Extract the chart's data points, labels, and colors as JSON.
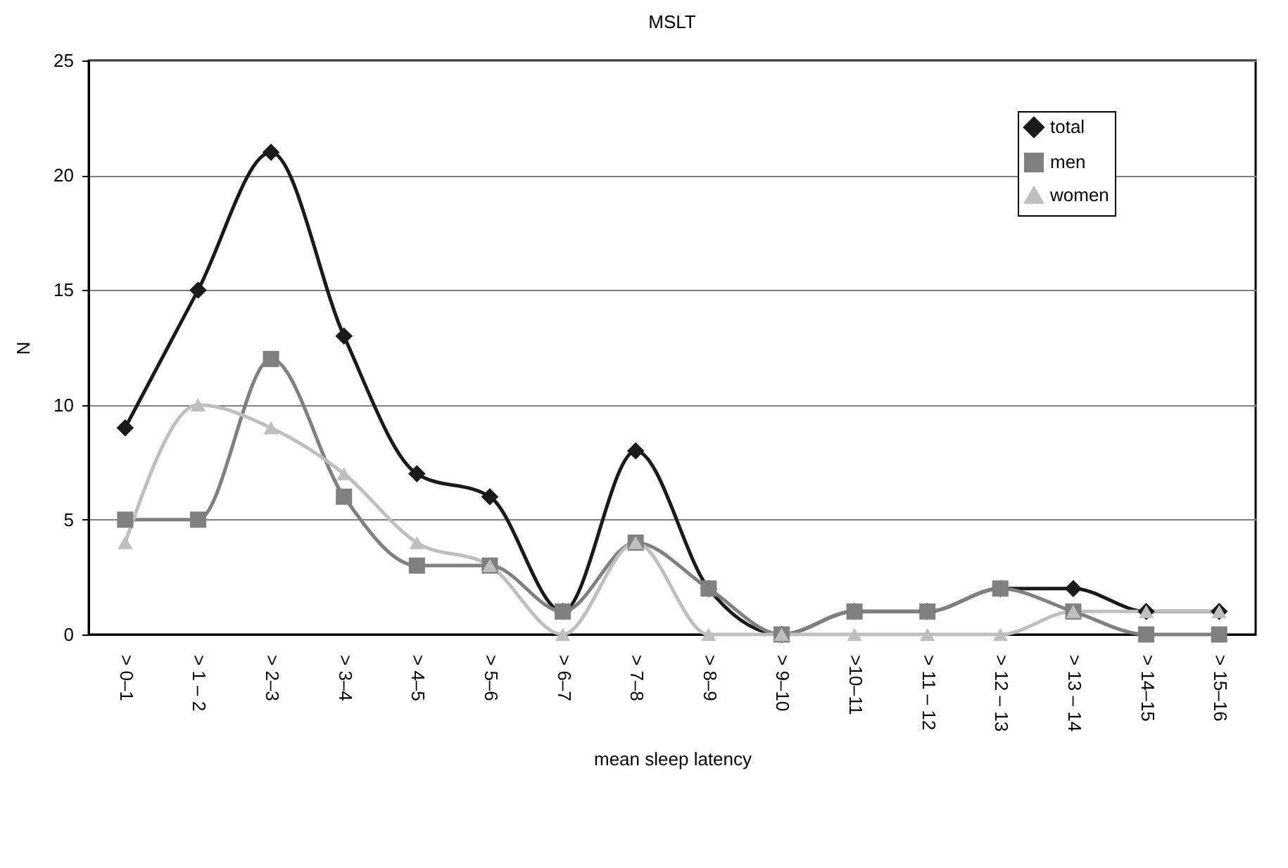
{
  "chart_data": {
    "type": "line",
    "title": "MSLT",
    "xlabel": "mean sleep latency",
    "ylabel": "N",
    "categories": [
      "> 0–1",
      "> 1 – 2",
      "> 2–3",
      "> 3–4",
      "> 4–5",
      "> 5–6",
      "> 6–7",
      "> 7–8",
      "> 8–9",
      "> 9–10",
      ">10–11",
      "> 11 – 12",
      "> 12 – 13",
      "> 13 – 14",
      "> 14–15",
      "> 15–16"
    ],
    "series": [
      {
        "name": "total",
        "color": "#1a1a1a",
        "marker": "diamond",
        "values": [
          9,
          15,
          21,
          13,
          7,
          6,
          1,
          8,
          2,
          0,
          1,
          1,
          2,
          2,
          1,
          1
        ]
      },
      {
        "name": "men",
        "color": "#808080",
        "marker": "square",
        "values": [
          5,
          5,
          12,
          6,
          3,
          3,
          1,
          4,
          2,
          0,
          1,
          1,
          2,
          1,
          0,
          0
        ]
      },
      {
        "name": "women",
        "color": "#bfbfbf",
        "marker": "triangle",
        "values": [
          4,
          10,
          9,
          7,
          4,
          3,
          0,
          4,
          0,
          0,
          0,
          0,
          0,
          1,
          1,
          1
        ]
      }
    ],
    "ylim": [
      0,
      25
    ],
    "yticks": [
      0,
      5,
      10,
      15,
      20,
      25
    ],
    "grid": "y",
    "legend": "top right",
    "line_style": "solid"
  }
}
